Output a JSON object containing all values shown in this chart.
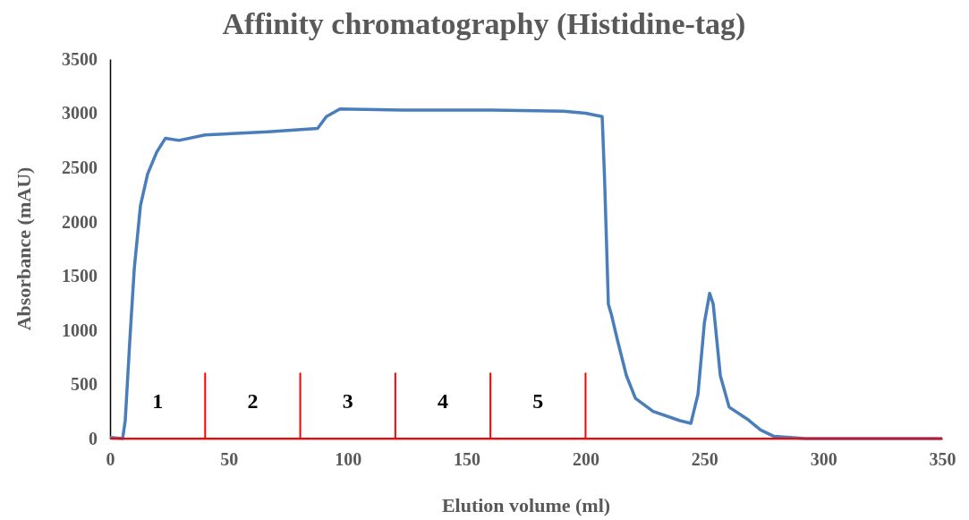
{
  "chart_data": {
    "type": "line",
    "title": "Affinity chromatography (Histidine-tag)",
    "xlabel": "Elution volume (ml)",
    "ylabel": "Absorbance (mAU)",
    "xlim": [
      0,
      350
    ],
    "xticks": [
      0,
      50,
      100,
      150,
      200,
      250,
      300,
      350
    ],
    "ylim": [
      0,
      3500
    ],
    "yticks": [
      0,
      500,
      1000,
      1500,
      2000,
      2500,
      3000,
      3500
    ],
    "grid": false,
    "marker": "none",
    "line_style": "solid",
    "series": [
      {
        "color": "#4a7ebb",
        "x": [
          0,
          5.3,
          6.4,
          8.3,
          10.2,
          12.8,
          15.8,
          19.6,
          23.3,
          29,
          40,
          66.6,
          87.3,
          91,
          96.7,
          123,
          160.7,
          190.8,
          200,
          207,
          208,
          209.6,
          210.8,
          213.4,
          217.2,
          221,
          228.4,
          239.7,
          244.3,
          247.3,
          250,
          252.2,
          253.7,
          256.7,
          260.4,
          268,
          273.6,
          279.3,
          292.4,
          350
        ],
        "values": [
          10,
          0,
          170,
          900,
          1570,
          2150,
          2440,
          2640,
          2770,
          2750,
          2800,
          2830,
          2860,
          2970,
          3040,
          3030,
          3030,
          3020,
          3000,
          2970,
          2400,
          1240,
          1150,
          910,
          580,
          370,
          250,
          165,
          140,
          410,
          1070,
          1340,
          1240,
          580,
          290,
          180,
          80,
          20,
          0,
          0
        ]
      },
      {
        "color": "#ff0000",
        "x": [
          0,
          40,
          40,
          40,
          80,
          80,
          80,
          120,
          120,
          120,
          160,
          160,
          160,
          200,
          200,
          200,
          350
        ],
        "values": [
          0,
          0,
          600,
          0,
          0,
          600,
          0,
          0,
          600,
          0,
          0,
          600,
          0,
          0,
          600,
          0,
          0
        ]
      }
    ],
    "annotations": [
      "1",
      "2",
      "3",
      "4",
      "5"
    ]
  }
}
